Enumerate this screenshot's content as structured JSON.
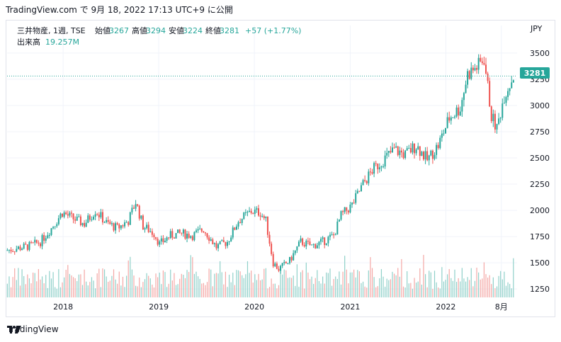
{
  "header": {
    "caption": "TradingView.com で 9月 18, 2022 17:13 UTC+9 に公開"
  },
  "legend": {
    "symbol": "三井物産, 1週, TSE",
    "open_label": "始値",
    "open_value": "3267",
    "high_label": "高値",
    "high_value": "3294",
    "low_label": "安値",
    "low_value": "3224",
    "close_label": "終値",
    "close_value": "3281",
    "change": "+57 (+1.77%)",
    "volume_label": "出来高",
    "volume_value": "19.257M"
  },
  "currency": "JPY",
  "last_price_badge": "3281",
  "footer": {
    "brand": "TradingView"
  },
  "colors": {
    "up": "#26a69a",
    "down": "#ef5350",
    "up_volume": "#8fd0c9",
    "down_volume": "#f4a7a5",
    "grid": "#f0f3fa",
    "axis_text": "#131722",
    "badge_bg": "#26a69a",
    "price_line": "#26a69a"
  },
  "chart_data": {
    "type": "candlestick",
    "ticker": "三井物産",
    "interval": "1週",
    "exchange": "TSE",
    "currency": "JPY",
    "y_ticks": [
      1250,
      1500,
      1750,
      2000,
      2250,
      2500,
      2750,
      3000,
      3250,
      3500
    ],
    "y_range": [
      1170,
      3560
    ],
    "x_range": [
      "2017-06-01",
      "2022-09-30"
    ],
    "x_ticks": [
      {
        "label": "2018",
        "date": "2018-01-01"
      },
      {
        "label": "2019",
        "date": "2019-01-01"
      },
      {
        "label": "2020",
        "date": "2020-01-01"
      },
      {
        "label": "2021",
        "date": "2021-01-01"
      },
      {
        "label": "2022",
        "date": "2022-01-01"
      },
      {
        "label": "8月",
        "date": "2022-08-01"
      }
    ],
    "last_close": 3281,
    "price_path": [
      [
        "2017-06-02",
        1620
      ],
      [
        "2017-07-14",
        1640
      ],
      [
        "2017-08-25",
        1660
      ],
      [
        "2017-10-06",
        1700
      ],
      [
        "2017-11-17",
        1830
      ],
      [
        "2017-12-29",
        1980
      ],
      [
        "2018-02-09",
        1920
      ],
      [
        "2018-03-23",
        1870
      ],
      [
        "2018-05-04",
        2000
      ],
      [
        "2018-06-15",
        1880
      ],
      [
        "2018-07-27",
        1830
      ],
      [
        "2018-09-07",
        1900
      ],
      [
        "2018-10-05",
        2080
      ],
      [
        "2018-11-02",
        1850
      ],
      [
        "2018-12-14",
        1780
      ],
      [
        "2019-01-04",
        1680
      ],
      [
        "2019-02-15",
        1760
      ],
      [
        "2019-03-29",
        1780
      ],
      [
        "2019-05-10",
        1760
      ],
      [
        "2019-06-21",
        1820
      ],
      [
        "2019-08-09",
        1650
      ],
      [
        "2019-09-20",
        1700
      ],
      [
        "2019-11-01",
        1900
      ],
      [
        "2019-12-20",
        1990
      ],
      [
        "2020-01-24",
        1980
      ],
      [
        "2020-02-14",
        1900
      ],
      [
        "2020-03-13",
        1500
      ],
      [
        "2020-04-03",
        1440
      ],
      [
        "2020-05-15",
        1520
      ],
      [
        "2020-06-26",
        1700
      ],
      [
        "2020-08-07",
        1660
      ],
      [
        "2020-09-18",
        1700
      ],
      [
        "2020-10-30",
        1760
      ],
      [
        "2020-11-27",
        1950
      ],
      [
        "2021-01-08",
        2050
      ],
      [
        "2021-02-19",
        2250
      ],
      [
        "2021-03-26",
        2380
      ],
      [
        "2021-05-07",
        2480
      ],
      [
        "2021-06-18",
        2580
      ],
      [
        "2021-07-30",
        2530
      ],
      [
        "2021-09-10",
        2620
      ],
      [
        "2021-10-22",
        2480
      ],
      [
        "2021-12-03",
        2620
      ],
      [
        "2022-01-14",
        2880
      ],
      [
        "2022-02-25",
        2980
      ],
      [
        "2022-03-25",
        3300
      ],
      [
        "2022-05-06",
        3380
      ],
      [
        "2022-05-27",
        3450
      ],
      [
        "2022-06-24",
        2900
      ],
      [
        "2022-07-15",
        2780
      ],
      [
        "2022-08-12",
        3100
      ],
      [
        "2022-09-16",
        3281
      ]
    ],
    "volume_note": "weekly volume histogram at bottom of chart"
  }
}
